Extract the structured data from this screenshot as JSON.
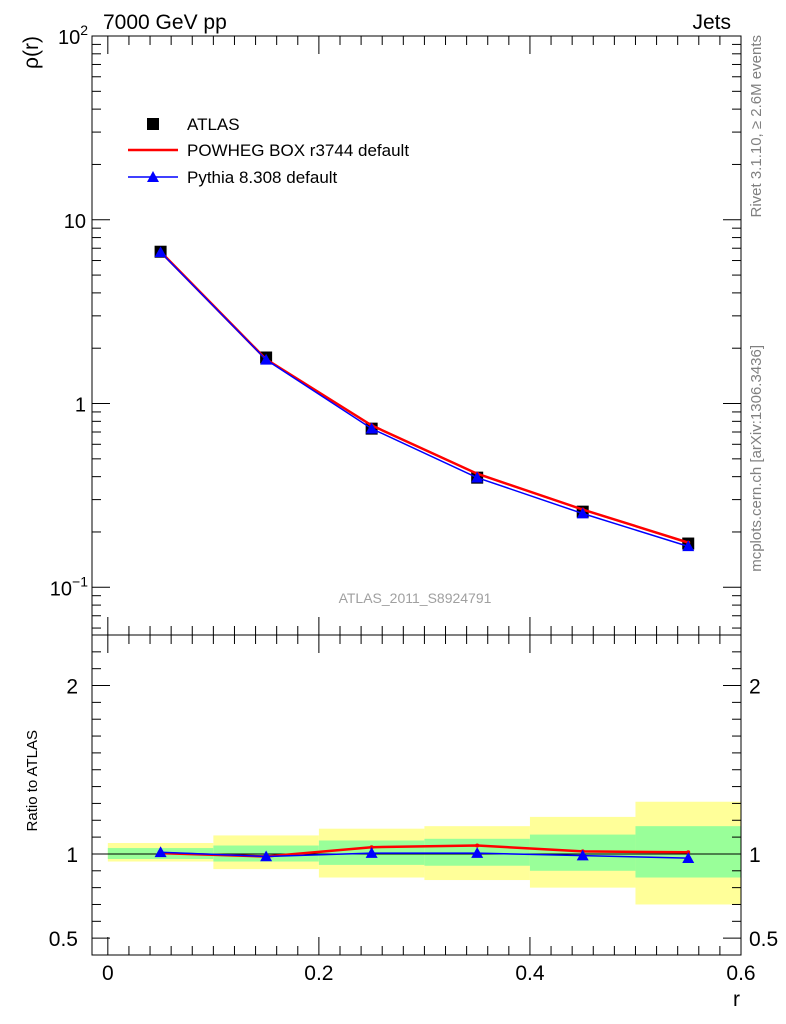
{
  "header": {
    "left": "7000 GeV pp",
    "right": "Jets"
  },
  "side_text": {
    "rivet": "Rivet 3.1.10, ≥ 2.6M events",
    "mcplots": "mcplots.cern.ch [arXiv:1306.3436]"
  },
  "watermark": "ATLAS_2011_S8924791",
  "legend": {
    "entries": [
      {
        "label": "ATLAS",
        "marker": "square",
        "color": "#000000"
      },
      {
        "label": "POWHEG BOX r3744 default",
        "marker": "line",
        "color": "#ff0000"
      },
      {
        "label": "Pythia 8.308 default",
        "marker": "triangle",
        "color": "#0000ff"
      }
    ],
    "placement": "top-left"
  },
  "chart_data": [
    {
      "type": "line",
      "ylabel": "ρ(r)",
      "yscale": "log",
      "ylim": [
        0.055,
        100
      ],
      "xlim": [
        -0.015,
        0.6
      ],
      "y_tick_labels": [
        {
          "value": 0.1,
          "base": "10",
          "exp": "−1"
        },
        {
          "value": 1,
          "base": "1",
          "exp": ""
        },
        {
          "value": 10,
          "base": "10",
          "exp": ""
        },
        {
          "value": 100,
          "base": "10",
          "exp": "2"
        }
      ],
      "x": [
        0.05,
        0.15,
        0.25,
        0.35,
        0.45,
        0.55
      ],
      "series": [
        {
          "name": "ATLAS",
          "color": "#000000",
          "values": [
            6.7,
            1.78,
            0.73,
            0.395,
            0.258,
            0.173
          ]
        },
        {
          "name": "POWHEG BOX r3744 default",
          "color": "#ff0000",
          "values": [
            6.7,
            1.74,
            0.76,
            0.415,
            0.265,
            0.175
          ]
        },
        {
          "name": "Pythia 8.308 default",
          "color": "#0000ff",
          "values": [
            6.65,
            1.73,
            0.73,
            0.395,
            0.252,
            0.167
          ]
        }
      ]
    },
    {
      "type": "line",
      "xlabel": "r",
      "ylabel": "Ratio to ATLAS",
      "ylim": [
        0.4,
        2.3
      ],
      "xlim": [
        -0.015,
        0.6
      ],
      "x_tick_labels": [
        "0",
        "0.2",
        "0.4",
        "0.6"
      ],
      "x_ticks": [
        0,
        0.2,
        0.4,
        0.6
      ],
      "y_tick_labels": [
        "0.5",
        "1",
        "2"
      ],
      "y_ticks": [
        0.5,
        1,
        2
      ],
      "bands": [
        {
          "xmin": 0.0,
          "xmax": 0.1,
          "green": [
            0.97,
            1.035
          ],
          "yellow": [
            0.955,
            1.065
          ]
        },
        {
          "xmin": 0.1,
          "xmax": 0.2,
          "green": [
            0.955,
            1.05
          ],
          "yellow": [
            0.91,
            1.11
          ]
        },
        {
          "xmin": 0.2,
          "xmax": 0.3,
          "green": [
            0.935,
            1.08
          ],
          "yellow": [
            0.86,
            1.15
          ]
        },
        {
          "xmin": 0.3,
          "xmax": 0.4,
          "green": [
            0.93,
            1.09
          ],
          "yellow": [
            0.845,
            1.165
          ]
        },
        {
          "xmin": 0.4,
          "xmax": 0.5,
          "green": [
            0.9,
            1.115
          ],
          "yellow": [
            0.8,
            1.22
          ]
        },
        {
          "xmin": 0.5,
          "xmax": 0.6,
          "green": [
            0.86,
            1.165
          ],
          "yellow": [
            0.7,
            1.31
          ]
        }
      ],
      "x": [
        0.05,
        0.15,
        0.25,
        0.35,
        0.45,
        0.55
      ],
      "series": [
        {
          "name": "POWHEG BOX r3744 default",
          "color": "#ff0000",
          "values": [
            1.005,
            0.985,
            1.04,
            1.05,
            1.015,
            1.01
          ]
        },
        {
          "name": "Pythia 8.308 default",
          "color": "#0000ff",
          "values": [
            1.01,
            0.985,
            1.005,
            1.005,
            0.99,
            0.975
          ]
        }
      ]
    }
  ]
}
